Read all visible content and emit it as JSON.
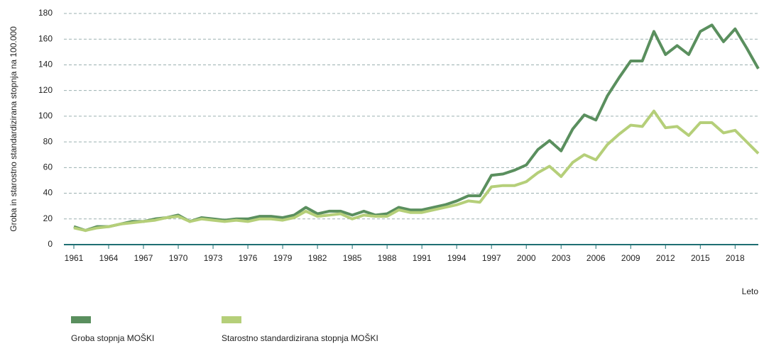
{
  "chart_data": {
    "type": "line",
    "y_label": "Groba in starostno standardizirana stopnja na 100.000",
    "x_label": "Leto",
    "x": [
      1961,
      1962,
      1963,
      1964,
      1965,
      1966,
      1967,
      1968,
      1969,
      1970,
      1971,
      1972,
      1973,
      1974,
      1975,
      1976,
      1977,
      1978,
      1979,
      1980,
      1981,
      1982,
      1983,
      1984,
      1985,
      1986,
      1987,
      1988,
      1989,
      1990,
      1991,
      1992,
      1993,
      1994,
      1995,
      1996,
      1997,
      1998,
      1999,
      2000,
      2001,
      2002,
      2003,
      2004,
      2005,
      2006,
      2007,
      2008,
      2009,
      2010,
      2011,
      2012,
      2013,
      2014,
      2015,
      2016,
      2017,
      2018,
      2019,
      2020
    ],
    "series": [
      {
        "name": "Groba stopnja MOŠKI",
        "color": "#5a8f5e",
        "values": [
          14,
          11,
          14,
          14,
          16,
          18,
          18,
          20,
          21,
          23,
          18,
          21,
          20,
          19,
          20,
          20,
          22,
          22,
          21,
          23,
          29,
          24,
          26,
          26,
          23,
          26,
          23,
          24,
          29,
          27,
          27,
          29,
          31,
          34,
          38,
          38,
          54,
          55,
          58,
          62,
          74,
          81,
          73,
          90,
          101,
          97,
          116,
          130,
          143,
          143,
          166,
          148,
          155,
          148,
          166,
          171,
          158,
          168,
          153,
          137
        ]
      },
      {
        "name": "Starostno standardizirana stopnja MOŠKI",
        "color": "#b5cf79",
        "values": [
          13,
          11,
          13,
          14,
          16,
          17,
          18,
          19,
          21,
          22,
          18,
          20,
          19,
          18,
          19,
          18,
          20,
          20,
          19,
          21,
          26,
          22,
          23,
          24,
          20,
          23,
          22,
          22,
          27,
          25,
          25,
          27,
          29,
          31,
          34,
          33,
          45,
          46,
          46,
          49,
          56,
          61,
          53,
          64,
          70,
          66,
          78,
          86,
          93,
          92,
          104,
          91,
          92,
          85,
          95,
          95,
          87,
          89,
          80,
          71
        ]
      }
    ],
    "xlim": [
      1961,
      2020
    ],
    "xticks": [
      1961,
      1964,
      1967,
      1970,
      1973,
      1976,
      1979,
      1982,
      1985,
      1988,
      1991,
      1994,
      1997,
      2000,
      2003,
      2006,
      2009,
      2012,
      2015,
      2018
    ],
    "ylim": [
      0,
      180
    ],
    "yticks": [
      0,
      20,
      40,
      60,
      80,
      100,
      120,
      140,
      160,
      180
    ],
    "grid": true
  }
}
